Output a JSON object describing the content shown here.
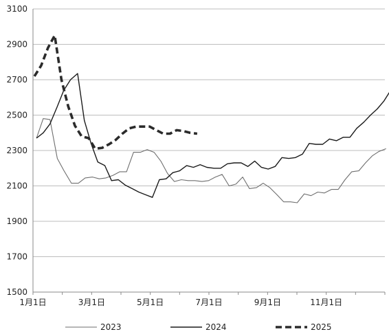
{
  "chart_data": {
    "type": "line",
    "title": "",
    "xlabel": "",
    "ylabel": "",
    "ylim": [
      1500,
      3100
    ],
    "yticks": [
      1500,
      1700,
      1900,
      2100,
      2300,
      2500,
      2700,
      2900,
      3100
    ],
    "xlim": [
      0,
      12
    ],
    "xticks": [
      {
        "month": 0,
        "label": "1月1日"
      },
      {
        "month": 2,
        "label": "3月1日"
      },
      {
        "month": 4,
        "label": "5月1日"
      },
      {
        "month": 6,
        "label": "7月1日"
      },
      {
        "month": 8,
        "label": "9月1日"
      },
      {
        "month": 10,
        "label": "11月1日"
      }
    ],
    "grid": true,
    "legend": "bottom",
    "series": [
      {
        "name": "2023",
        "color": "#6e6e6e",
        "style": "thin",
        "x": [
          0.12,
          0.35,
          0.58,
          0.83,
          1.06,
          1.31,
          1.55,
          1.78,
          2.03,
          2.26,
          2.49,
          2.73,
          2.96,
          3.19,
          3.43,
          3.66,
          3.89,
          4.13,
          4.36,
          4.59,
          4.82,
          5.06,
          5.29,
          5.52,
          5.76,
          5.99,
          6.22,
          6.45,
          6.69,
          6.92,
          7.15,
          7.38,
          7.62,
          7.85,
          8.08,
          8.32,
          8.55,
          8.78,
          9.01,
          9.25,
          9.48,
          9.71,
          9.94,
          10.18,
          10.41,
          10.64,
          10.87,
          11.11,
          11.34,
          11.57,
          11.8,
          12.04
        ],
        "y": [
          2370,
          2480,
          2475,
          2255,
          2185,
          2115,
          2115,
          2145,
          2150,
          2140,
          2145,
          2160,
          2180,
          2180,
          2290,
          2290,
          2305,
          2290,
          2240,
          2170,
          2125,
          2135,
          2130,
          2130,
          2125,
          2130,
          2150,
          2165,
          2100,
          2110,
          2150,
          2085,
          2090,
          2115,
          2090,
          2050,
          2010,
          2010,
          2005,
          2055,
          2045,
          2065,
          2060,
          2080,
          2080,
          2135,
          2180,
          2185,
          2230,
          2270,
          2295,
          2310
        ]
      },
      {
        "name": "2024",
        "color": "#1a1a1a",
        "style": "medium",
        "x": [
          0.12,
          0.35,
          0.58,
          0.82,
          1.05,
          1.28,
          1.52,
          1.75,
          1.98,
          2.21,
          2.45,
          2.68,
          2.91,
          3.14,
          3.38,
          3.61,
          3.84,
          4.07,
          4.31,
          4.54,
          4.77,
          5.0,
          5.24,
          5.47,
          5.7,
          5.93,
          6.17,
          6.4,
          6.63,
          6.86,
          7.1,
          7.33,
          7.56,
          7.79,
          8.02,
          8.26,
          8.49,
          8.72,
          8.95,
          9.19,
          9.42,
          9.65,
          9.88,
          10.11,
          10.35,
          10.58,
          10.81,
          11.04,
          11.28,
          11.51,
          11.74,
          11.97,
          12.2
        ],
        "y": [
          2370,
          2400,
          2450,
          2545,
          2640,
          2700,
          2735,
          2470,
          2340,
          2235,
          2215,
          2130,
          2135,
          2105,
          2085,
          2065,
          2050,
          2035,
          2135,
          2140,
          2175,
          2185,
          2215,
          2205,
          2220,
          2205,
          2200,
          2200,
          2225,
          2230,
          2230,
          2210,
          2240,
          2205,
          2195,
          2210,
          2260,
          2255,
          2260,
          2280,
          2340,
          2335,
          2335,
          2365,
          2355,
          2375,
          2375,
          2425,
          2460,
          2500,
          2535,
          2580,
          2640
        ]
      },
      {
        "name": "2025",
        "color": "#2b2b2b",
        "style": "dashed",
        "x": [
          0.05,
          0.28,
          0.51,
          0.74,
          0.97,
          1.2,
          1.43,
          1.66,
          1.9,
          2.12,
          2.36,
          2.59,
          2.82,
          3.05,
          3.28,
          3.52,
          3.75,
          3.98,
          4.21,
          4.44,
          4.67,
          4.9,
          5.13,
          5.36,
          5.6
        ],
        "y": [
          2720,
          2780,
          2880,
          2950,
          2700,
          2550,
          2440,
          2380,
          2370,
          2310,
          2315,
          2335,
          2360,
          2395,
          2425,
          2435,
          2435,
          2435,
          2415,
          2395,
          2395,
          2415,
          2410,
          2400,
          2395
        ]
      }
    ]
  }
}
